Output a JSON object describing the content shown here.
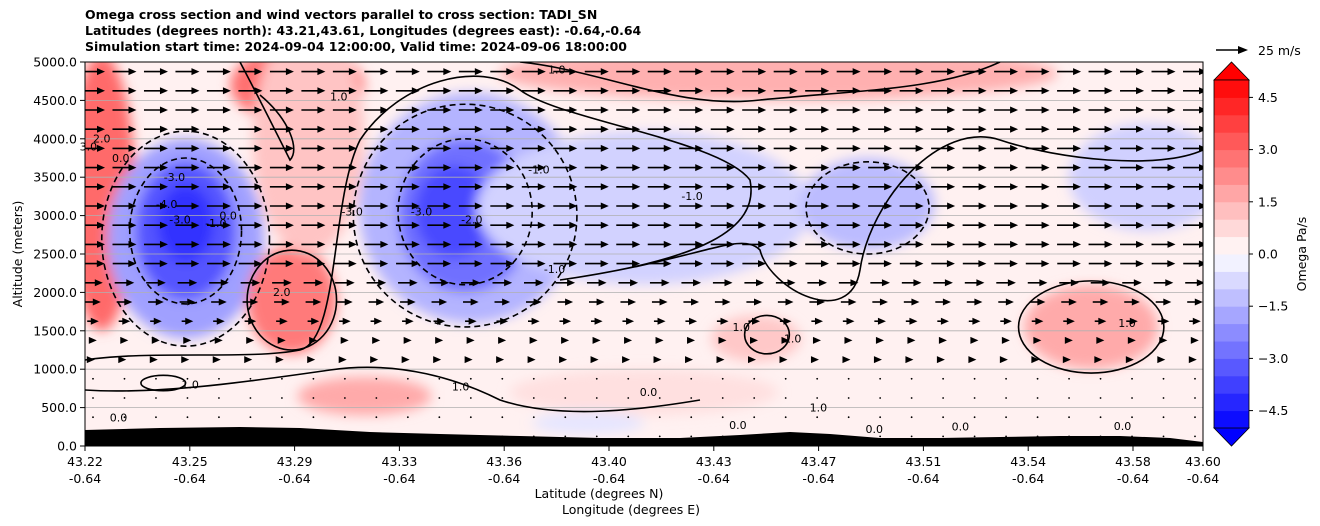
{
  "chart_data": {
    "type": "contour",
    "title_lines": [
      "Omega cross section and wind vectors parallel to cross section: TADI_SN",
      "Latitudes (degrees north): 43.21,43.61, Longitudes (degrees east): -0.64,-0.64",
      "Simulation start time: 2024-09-04 12:00:00, Valid time: 2024-09-06 18:00:00"
    ],
    "xlabel": "Latitude (degrees N)",
    "xlabel2": "Longitude (degrees E)",
    "ylabel": "Altitude (meters)",
    "ylim": [
      0,
      5000
    ],
    "yticks": [
      "0.0",
      "500.0",
      "1000.0",
      "1500.0",
      "2000.0",
      "2500.0",
      "3000.0",
      "3500.0",
      "4000.0",
      "4500.0",
      "5000.0"
    ],
    "xticks": [
      {
        "lat": "43.22",
        "lon": "-0.64"
      },
      {
        "lat": "43.25",
        "lon": "-0.64"
      },
      {
        "lat": "43.29",
        "lon": "-0.64"
      },
      {
        "lat": "43.33",
        "lon": "-0.64"
      },
      {
        "lat": "43.36",
        "lon": "-0.64"
      },
      {
        "lat": "43.40",
        "lon": "-0.64"
      },
      {
        "lat": "43.43",
        "lon": "-0.64"
      },
      {
        "lat": "43.47",
        "lon": "-0.64"
      },
      {
        "lat": "43.51",
        "lon": "-0.64"
      },
      {
        "lat": "43.54",
        "lon": "-0.64"
      },
      {
        "lat": "43.58",
        "lon": "-0.64"
      },
      {
        "lat": "43.60",
        "lon": "-0.64"
      }
    ],
    "colorbar": {
      "label": "Omega Pa/s",
      "range": [
        -5,
        5
      ],
      "ticks": [
        "4.5",
        "3.0",
        "1.5",
        "0.0",
        "−1.5",
        "−3.0",
        "−4.5"
      ],
      "tick_values": [
        4.5,
        3.0,
        1.5,
        0.0,
        -1.5,
        -3.0,
        -4.5
      ],
      "colors": [
        "#0000ff",
        "#ff0000"
      ]
    },
    "quiver_key": "25 m/s",
    "contour_labels": [
      {
        "text": "3.0",
        "x": 0.3,
        "y": 3850
      },
      {
        "text": "2.0",
        "x": 1.5,
        "y": 3950
      },
      {
        "text": "0.0",
        "x": 3.2,
        "y": 3700
      },
      {
        "text": "-3.0",
        "x": 8.0,
        "y": 3450
      },
      {
        "text": "-4.0",
        "x": 7.3,
        "y": 3100
      },
      {
        "text": "-3.0",
        "x": 8.5,
        "y": 2900
      },
      {
        "text": "-1.0",
        "x": 11.7,
        "y": 2850
      },
      {
        "text": "0.0",
        "x": 12.8,
        "y": 2950
      },
      {
        "text": "1.0",
        "x": 22.7,
        "y": 4500
      },
      {
        "text": "1.0",
        "x": 42.2,
        "y": 4850
      },
      {
        "text": "2.0",
        "x": 17.6,
        "y": 1950
      },
      {
        "text": "-3.0",
        "x": 23.9,
        "y": 3000
      },
      {
        "text": "-3.0",
        "x": 30.1,
        "y": 3000
      },
      {
        "text": "-2.0",
        "x": 34.6,
        "y": 2900
      },
      {
        "text": "-1.0",
        "x": 40.6,
        "y": 3550
      },
      {
        "text": "-1.0",
        "x": 42.0,
        "y": 2250
      },
      {
        "text": "-1.0",
        "x": 54.3,
        "y": 3200
      },
      {
        "text": "1.0",
        "x": 58.7,
        "y": 1500
      },
      {
        "text": "1.0",
        "x": 63.3,
        "y": 1350
      },
      {
        "text": "1.0",
        "x": 93.2,
        "y": 1550
      },
      {
        "text": "1.0",
        "x": 9.4,
        "y": 750
      },
      {
        "text": "1.0",
        "x": 33.6,
        "y": 720
      },
      {
        "text": "0.0",
        "x": 50.4,
        "y": 650
      },
      {
        "text": "1.0",
        "x": 65.6,
        "y": 450
      },
      {
        "text": "0.0",
        "x": 58.4,
        "y": 220
      },
      {
        "text": "0.0",
        "x": 70.6,
        "y": 170
      },
      {
        "text": "0.0",
        "x": 78.3,
        "y": 200
      },
      {
        "text": "0.0",
        "x": 92.8,
        "y": 210
      },
      {
        "text": "0.0",
        "x": 3.0,
        "y": 320
      }
    ]
  }
}
